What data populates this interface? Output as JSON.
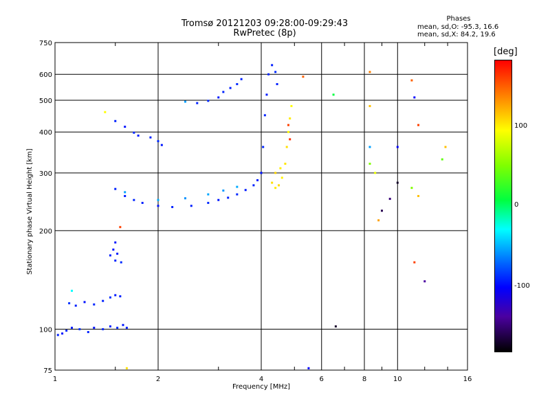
{
  "header": {
    "title_line1": "Tromsø 20121203 09:28:00-09:29:43",
    "title_line2": "RwPretec (8p)",
    "stats_title": "Phases",
    "stats_o": "mean, sd,O: -95.3, 16.6",
    "stats_x": "mean, sd,X:  84.2, 19.6"
  },
  "colorbar": {
    "unit_label": "[deg]",
    "ticks": [
      "100",
      "0",
      "-100"
    ]
  },
  "chart_data": {
    "type": "scatter",
    "xlabel": "Frequency [MHz]",
    "ylabel": "Stationary phase Virtual Height [km]",
    "x_scale": "log",
    "y_scale": "log",
    "xlim": [
      1,
      16
    ],
    "ylim": [
      75,
      750
    ],
    "x_ticks": [
      1,
      2,
      4,
      6,
      8,
      10,
      16
    ],
    "y_ticks": [
      75,
      100,
      200,
      300,
      400,
      500,
      600,
      750
    ],
    "grid": true,
    "colorscale": "phase [deg], -180 (black) to +180 (red), rainbow",
    "color_range": [
      -180,
      180
    ],
    "colorbar_ticks": [
      100,
      0,
      -100
    ],
    "series": [
      {
        "points": [
          [
            1.02,
            96,
            -100
          ],
          [
            1.05,
            97,
            -105
          ],
          [
            1.08,
            99,
            -98
          ],
          [
            1.12,
            101,
            -102
          ],
          [
            1.18,
            100,
            -96
          ],
          [
            1.25,
            98,
            -100
          ],
          [
            1.3,
            101,
            -104
          ],
          [
            1.38,
            100,
            -99
          ],
          [
            1.45,
            102,
            -101
          ],
          [
            1.52,
            101,
            -97
          ],
          [
            1.58,
            103,
            -103
          ],
          [
            1.62,
            101,
            -100
          ],
          [
            1.1,
            120,
            -95
          ],
          [
            1.15,
            118,
            -100
          ],
          [
            1.22,
            121,
            -105
          ],
          [
            1.3,
            119,
            -98
          ],
          [
            1.38,
            122,
            -100
          ],
          [
            1.45,
            125,
            -96
          ],
          [
            1.5,
            127,
            -102
          ],
          [
            1.55,
            126,
            -99
          ],
          [
            1.12,
            131,
            -30
          ],
          [
            1.45,
            168,
            -100
          ],
          [
            1.48,
            175,
            -104
          ],
          [
            1.5,
            162,
            -98
          ],
          [
            1.52,
            170,
            -101
          ],
          [
            1.56,
            160,
            -97
          ],
          [
            1.5,
            184,
            -103
          ],
          [
            1.5,
            268,
            -100
          ],
          [
            1.6,
            255,
            -102
          ],
          [
            1.7,
            248,
            -98
          ],
          [
            1.8,
            243,
            -100
          ],
          [
            2.0,
            238,
            -104
          ],
          [
            2.2,
            236,
            -99
          ],
          [
            2.5,
            238,
            -101
          ],
          [
            2.8,
            243,
            -97
          ],
          [
            3.0,
            248,
            -103
          ],
          [
            3.2,
            252,
            -100
          ],
          [
            3.4,
            258,
            -98
          ],
          [
            3.6,
            266,
            -102
          ],
          [
            3.8,
            275,
            -99
          ],
          [
            3.9,
            285,
            -101
          ],
          [
            4.0,
            300,
            -97
          ],
          [
            1.6,
            262,
            -60
          ],
          [
            2.0,
            248,
            -55
          ],
          [
            2.4,
            251,
            -65
          ],
          [
            2.8,
            258,
            -58
          ],
          [
            3.1,
            265,
            -62
          ],
          [
            3.4,
            272,
            -57
          ],
          [
            1.5,
            432,
            -100
          ],
          [
            1.6,
            415,
            -104
          ],
          [
            1.7,
            398,
            -98
          ],
          [
            1.75,
            390,
            -101
          ],
          [
            1.9,
            385,
            -100
          ],
          [
            2.0,
            375,
            -97
          ],
          [
            2.05,
            365,
            -103
          ],
          [
            2.4,
            495,
            -60
          ],
          [
            2.6,
            490,
            -100
          ],
          [
            2.8,
            498,
            -98
          ],
          [
            3.0,
            510,
            -102
          ],
          [
            3.1,
            530,
            -99
          ],
          [
            3.25,
            545,
            -101
          ],
          [
            3.4,
            560,
            -97
          ],
          [
            3.5,
            580,
            -100
          ],
          [
            4.0,
            300,
            -104
          ],
          [
            4.05,
            360,
            -98
          ],
          [
            4.1,
            450,
            -100
          ],
          [
            4.15,
            520,
            -102
          ],
          [
            4.2,
            600,
            -99
          ],
          [
            4.3,
            640,
            -101
          ],
          [
            4.4,
            610,
            -97
          ],
          [
            4.45,
            560,
            -100
          ],
          [
            4.3,
            280,
            110
          ],
          [
            4.4,
            270,
            106
          ],
          [
            4.5,
            275,
            112
          ],
          [
            4.6,
            290,
            104
          ],
          [
            4.7,
            320,
            108
          ],
          [
            4.75,
            360,
            110
          ],
          [
            4.8,
            400,
            102
          ],
          [
            4.85,
            440,
            106
          ],
          [
            4.9,
            480,
            100
          ],
          [
            4.4,
            300,
            114
          ],
          [
            4.55,
            310,
            105
          ],
          [
            4.8,
            420,
            160
          ],
          [
            4.85,
            380,
            165
          ],
          [
            5.3,
            590,
            150
          ],
          [
            6.5,
            520,
            0
          ],
          [
            8.3,
            610,
            140
          ],
          [
            8.3,
            480,
            120
          ],
          [
            8.3,
            360,
            -60
          ],
          [
            8.3,
            320,
            40
          ],
          [
            8.6,
            300,
            90
          ],
          [
            9.0,
            230,
            -160
          ],
          [
            9.5,
            250,
            -150
          ],
          [
            10.0,
            280,
            -170
          ],
          [
            10.0,
            360,
            -110
          ],
          [
            11.0,
            575,
            150
          ],
          [
            11.2,
            510,
            -110
          ],
          [
            11.5,
            420,
            160
          ],
          [
            11.0,
            270,
            40
          ],
          [
            11.5,
            255,
            120
          ],
          [
            12.0,
            140,
            -140
          ],
          [
            11.2,
            160,
            160
          ],
          [
            13.5,
            330,
            30
          ],
          [
            13.8,
            360,
            120
          ],
          [
            8.8,
            215,
            130
          ],
          [
            6.6,
            102,
            -170
          ],
          [
            5.5,
            76,
            -110
          ],
          [
            1.62,
            76,
            110
          ],
          [
            1.55,
            205,
            160
          ],
          [
            1.4,
            460,
            100
          ]
        ]
      }
    ]
  }
}
